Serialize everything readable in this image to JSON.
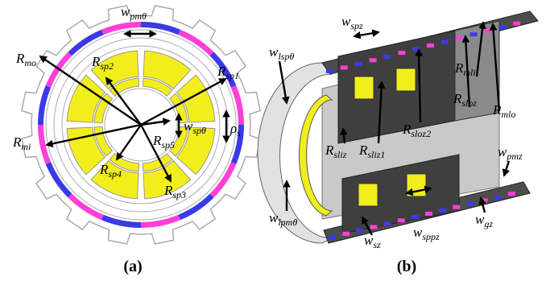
{
  "figure_a": {
    "caption": "(a)",
    "labels": [
      {
        "main": "w",
        "sub": "pmθ"
      },
      {
        "main": "R",
        "sub": "mo"
      },
      {
        "main": "R",
        "sub": "sp2"
      },
      {
        "main": "R",
        "sub": "sp1"
      },
      {
        "main": "w",
        "sub": "spθ"
      },
      {
        "main": "ρ",
        "sub": "s"
      },
      {
        "main": "R",
        "sub": "mi"
      },
      {
        "main": "R",
        "sub": "sp5"
      },
      {
        "main": "R",
        "sub": "sp4"
      },
      {
        "main": "R",
        "sub": "sp3"
      }
    ]
  },
  "figure_b": {
    "caption": "(b)",
    "labels": [
      {
        "main": "w",
        "sub": "lspθ"
      },
      {
        "main": "w",
        "sub": "spz"
      },
      {
        "main": "R",
        "sub": "mli"
      },
      {
        "main": "R",
        "sub": "sloz"
      },
      {
        "main": "R",
        "sub": "mlo"
      },
      {
        "main": "R",
        "sub": "sloz2"
      },
      {
        "main": "R",
        "sub": "sliz"
      },
      {
        "main": "R",
        "sub": "sliz1"
      },
      {
        "main": "w",
        "sub": "pmz"
      },
      {
        "main": "w",
        "sub": "lpmθ"
      },
      {
        "main": "w",
        "sub": "gz"
      },
      {
        "main": "w",
        "sub": "sz"
      },
      {
        "main": "w",
        "sub": "sppz"
      }
    ]
  }
}
